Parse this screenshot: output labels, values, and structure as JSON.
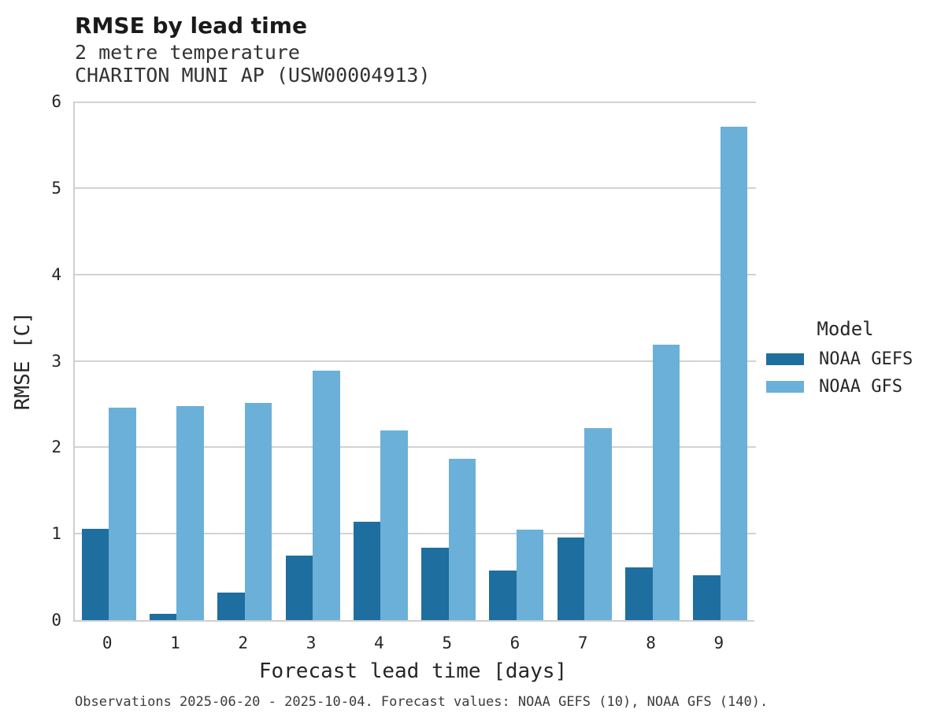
{
  "header": {
    "title": "RMSE by lead time",
    "subtitle_line1": "2 metre temperature",
    "subtitle_line2": "CHARITON MUNI AP (USW00004913)"
  },
  "chart_data": {
    "type": "bar",
    "title": "RMSE by lead time",
    "subtitle": [
      "2 metre temperature",
      "CHARITON MUNI AP (USW00004913)"
    ],
    "categories": [
      "0",
      "1",
      "2",
      "3",
      "4",
      "5",
      "6",
      "7",
      "8",
      "9"
    ],
    "series": [
      {
        "name": "NOAA GEFS",
        "color": "#1e6e9f",
        "values": [
          1.06,
          0.07,
          0.32,
          0.75,
          1.14,
          0.84,
          0.57,
          0.96,
          0.61,
          0.52
        ]
      },
      {
        "name": "NOAA GFS",
        "color": "#6bb0d8",
        "values": [
          2.46,
          2.48,
          2.51,
          2.89,
          2.19,
          1.87,
          1.05,
          2.22,
          3.19,
          5.71
        ]
      }
    ],
    "xlabel": "Forecast lead time [days]",
    "ylabel": "RMSE [C]",
    "ylim": [
      0,
      6
    ],
    "yticks": [
      0,
      1,
      2,
      3,
      4,
      5,
      6
    ],
    "grid": "horizontal",
    "grid_color": "#d2d2d2",
    "legend_title": "Model",
    "legend_position": "right"
  },
  "legend": {
    "title": "Model",
    "entries": [
      {
        "label": "NOAA GEFS",
        "color": "#1e6e9f"
      },
      {
        "label": "NOAA GFS",
        "color": "#6bb0d8"
      }
    ]
  },
  "footer": {
    "note": "Observations 2025-06-20 - 2025-10-04. Forecast values: NOAA GEFS (10), NOAA GFS (140)."
  },
  "colors": {
    "noaa_gefs": "#1e6e9f",
    "noaa_gfs": "#6bb0d8",
    "grid": "#d2d2d2",
    "spine": "#cfcfcf",
    "background": "#ffffff"
  }
}
